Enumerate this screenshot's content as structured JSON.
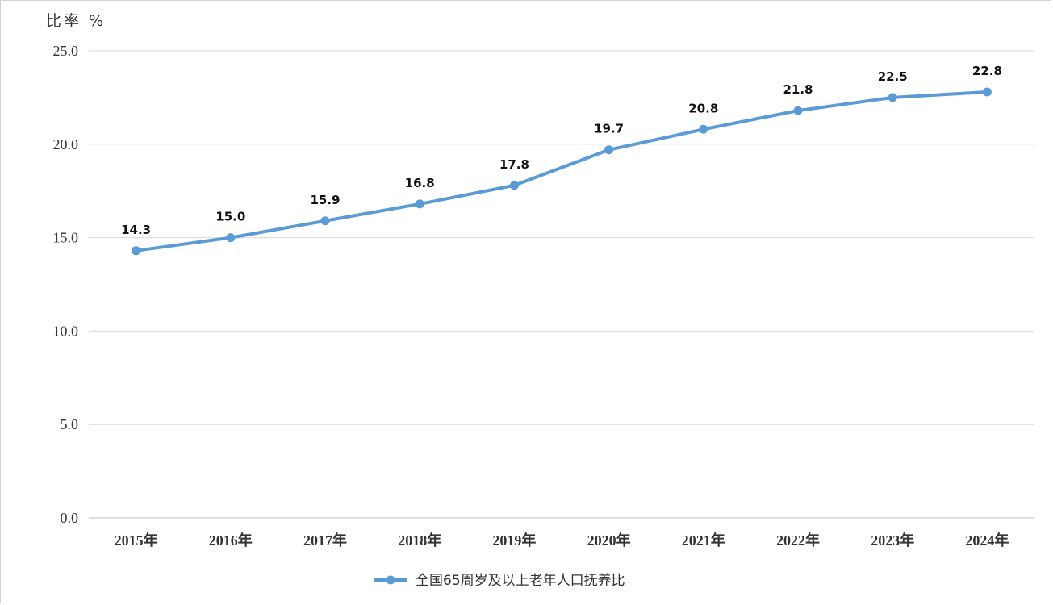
{
  "chart_data": {
    "type": "line",
    "ylabel": "比率 %",
    "ylim": [
      0,
      25
    ],
    "yticks": [
      "0.0",
      "5.0",
      "10.0",
      "15.0",
      "20.0",
      "25.0"
    ],
    "categories": [
      "2015年",
      "2016年",
      "2017年",
      "2018年",
      "2019年",
      "2020年",
      "2021年",
      "2022年",
      "2023年",
      "2024年"
    ],
    "series": [
      {
        "name": "全国65周岁及以上老年人口抚养比",
        "values": [
          14.3,
          15.0,
          15.9,
          16.8,
          17.8,
          19.7,
          20.8,
          21.8,
          22.5,
          22.8
        ],
        "labels": [
          "14.3",
          "15.0",
          "15.9",
          "16.8",
          "17.8",
          "19.7",
          "20.8",
          "21.8",
          "22.5",
          "22.8"
        ],
        "color": "#5b9bd5"
      }
    ],
    "grid": true,
    "legend": "bottom-center"
  }
}
